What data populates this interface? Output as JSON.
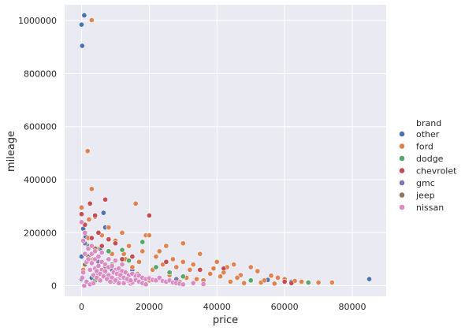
{
  "chart_data": {
    "type": "scatter",
    "xlabel": "price",
    "ylabel": "mileage",
    "xlim": [
      -5000,
      90000
    ],
    "ylim": [
      -40000,
      1060000
    ],
    "xticks": [
      0,
      20000,
      40000,
      60000,
      80000
    ],
    "xtick_labels": [
      "0",
      "20000",
      "40000",
      "60000",
      "80000"
    ],
    "yticks": [
      0,
      200000,
      400000,
      600000,
      800000,
      1000000
    ],
    "ytick_labels": [
      "0",
      "200000",
      "400000",
      "600000",
      "800000",
      "1000000"
    ],
    "grid": true,
    "legend": {
      "title": "brand",
      "placement": "right",
      "entries": [
        "other",
        "ford",
        "dodge",
        "chevrolet",
        "gmc",
        "jeep",
        "nissan"
      ]
    },
    "series": [
      {
        "name": "other",
        "color": "#4c72b0",
        "points": [
          [
            0,
            985000
          ],
          [
            800,
            1020000
          ],
          [
            200,
            905000
          ],
          [
            85000,
            25000
          ],
          [
            6500,
            275000
          ],
          [
            500,
            215000
          ],
          [
            0,
            110000
          ],
          [
            1200,
            185000
          ],
          [
            7000,
            220000
          ],
          [
            5500,
            140000
          ],
          [
            62000,
            15000
          ],
          [
            55000,
            22000
          ],
          [
            3000,
            30000
          ],
          [
            15000,
            60000
          ],
          [
            0,
            25000
          ]
        ]
      },
      {
        "name": "ford",
        "color": "#dd8452",
        "points": [
          [
            3000,
            1002000
          ],
          [
            1800,
            508000
          ],
          [
            3000,
            365000
          ],
          [
            16000,
            310000
          ],
          [
            0,
            295000
          ],
          [
            2200,
            250000
          ],
          [
            4000,
            260000
          ],
          [
            8000,
            220000
          ],
          [
            12000,
            200000
          ],
          [
            19000,
            190000
          ],
          [
            20000,
            190000
          ],
          [
            30000,
            160000
          ],
          [
            25000,
            150000
          ],
          [
            35000,
            120000
          ],
          [
            40000,
            90000
          ],
          [
            45000,
            80000
          ],
          [
            50000,
            70000
          ],
          [
            52000,
            55000
          ],
          [
            58000,
            30000
          ],
          [
            60000,
            25000
          ],
          [
            65000,
            15000
          ],
          [
            70000,
            12000
          ],
          [
            74000,
            12000
          ],
          [
            56000,
            38000
          ],
          [
            42000,
            50000
          ],
          [
            38000,
            45000
          ],
          [
            47000,
            40000
          ],
          [
            32000,
            60000
          ],
          [
            28000,
            70000
          ],
          [
            24000,
            80000
          ],
          [
            22000,
            110000
          ],
          [
            18000,
            130000
          ],
          [
            14000,
            150000
          ],
          [
            10000,
            170000
          ],
          [
            6000,
            190000
          ],
          [
            2000,
            180000
          ],
          [
            1000,
            160000
          ],
          [
            4500,
            140000
          ],
          [
            9000,
            120000
          ],
          [
            13000,
            100000
          ],
          [
            17000,
            90000
          ],
          [
            21000,
            60000
          ],
          [
            26000,
            40000
          ],
          [
            31000,
            30000
          ],
          [
            36000,
            20000
          ],
          [
            44000,
            15000
          ],
          [
            48000,
            10000
          ],
          [
            53000,
            12000
          ],
          [
            63000,
            18000
          ],
          [
            27000,
            100000
          ],
          [
            33000,
            80000
          ],
          [
            39000,
            65000
          ],
          [
            43000,
            70000
          ],
          [
            46000,
            30000
          ],
          [
            15000,
            70000
          ],
          [
            11000,
            50000
          ],
          [
            7000,
            80000
          ],
          [
            3500,
            100000
          ],
          [
            500,
            60000
          ],
          [
            5000,
            40000
          ],
          [
            20000,
            20000
          ],
          [
            29000,
            15000
          ],
          [
            34000,
            25000
          ],
          [
            41000,
            35000
          ],
          [
            54000,
            20000
          ],
          [
            57000,
            8000
          ],
          [
            16500,
            45000
          ],
          [
            12500,
            120000
          ],
          [
            23000,
            130000
          ],
          [
            30000,
            90000
          ]
        ]
      },
      {
        "name": "dodge",
        "color": "#55a868",
        "points": [
          [
            18000,
            165000
          ],
          [
            67000,
            12000
          ],
          [
            2000,
            150000
          ],
          [
            8000,
            130000
          ],
          [
            14000,
            95000
          ],
          [
            22000,
            70000
          ],
          [
            12000,
            135000
          ],
          [
            26000,
            50000
          ],
          [
            50000,
            20000
          ],
          [
            4000,
            20000
          ],
          [
            30000,
            35000
          ],
          [
            9000,
            80000
          ]
        ]
      },
      {
        "name": "chevrolet",
        "color": "#c44e52",
        "points": [
          [
            7000,
            325000
          ],
          [
            20000,
            265000
          ],
          [
            2500,
            310000
          ],
          [
            4000,
            265000
          ],
          [
            0,
            270000
          ],
          [
            1000,
            230000
          ],
          [
            5000,
            200000
          ],
          [
            10000,
            160000
          ],
          [
            6000,
            150000
          ],
          [
            8000,
            175000
          ],
          [
            15000,
            110000
          ],
          [
            25000,
            90000
          ],
          [
            35000,
            60000
          ],
          [
            42000,
            65000
          ],
          [
            60000,
            15000
          ],
          [
            62000,
            10000
          ],
          [
            3000,
            180000
          ],
          [
            12000,
            100000
          ]
        ]
      },
      {
        "name": "gmc",
        "color": "#8172b3",
        "points": [
          [
            1000,
            160000
          ],
          [
            5000,
            90000
          ],
          [
            9000,
            60000
          ],
          [
            16000,
            40000
          ],
          [
            28000,
            25000
          ],
          [
            3000,
            120000
          ]
        ]
      },
      {
        "name": "jeep",
        "color": "#937860",
        "points": [
          [
            2000,
            110000
          ],
          [
            7000,
            70000
          ],
          [
            12000,
            45000
          ],
          [
            4000,
            140000
          ],
          [
            20000,
            30000
          ],
          [
            1000,
            80000
          ]
        ]
      },
      {
        "name": "nissan",
        "color": "#da8bc3",
        "points": [
          [
            0,
            240000
          ],
          [
            1000,
            200000
          ],
          [
            500,
            170000
          ],
          [
            2000,
            140000
          ],
          [
            3000,
            120000
          ],
          [
            4000,
            100000
          ],
          [
            5000,
            110000
          ],
          [
            6000,
            90000
          ],
          [
            7000,
            80000
          ],
          [
            8000,
            70000
          ],
          [
            9000,
            75000
          ],
          [
            10000,
            60000
          ],
          [
            11000,
            65000
          ],
          [
            12000,
            55000
          ],
          [
            13000,
            50000
          ],
          [
            14000,
            40000
          ],
          [
            15000,
            45000
          ],
          [
            16000,
            35000
          ],
          [
            17000,
            38000
          ],
          [
            18000,
            30000
          ],
          [
            19000,
            25000
          ],
          [
            20000,
            28000
          ],
          [
            21000,
            22000
          ],
          [
            22000,
            20000
          ],
          [
            23000,
            30000
          ],
          [
            24000,
            18000
          ],
          [
            25000,
            15000
          ],
          [
            26000,
            20000
          ],
          [
            27000,
            12000
          ],
          [
            28000,
            10000
          ],
          [
            1500,
            90000
          ],
          [
            2500,
            60000
          ],
          [
            3500,
            40000
          ],
          [
            4500,
            30000
          ],
          [
            5500,
            20000
          ],
          [
            6500,
            50000
          ],
          [
            7500,
            45000
          ],
          [
            8500,
            35000
          ],
          [
            9500,
            15000
          ],
          [
            10500,
            25000
          ],
          [
            11500,
            30000
          ],
          [
            12500,
            10000
          ],
          [
            13500,
            20000
          ],
          [
            14500,
            8000
          ],
          [
            500,
            50000
          ],
          [
            1000,
            120000
          ],
          [
            2000,
            100000
          ],
          [
            3000,
            85000
          ],
          [
            4000,
            65000
          ],
          [
            5000,
            75000
          ],
          [
            6000,
            60000
          ],
          [
            7000,
            55000
          ],
          [
            8000,
            40000
          ],
          [
            9000,
            30000
          ],
          [
            10000,
            20000
          ],
          [
            11000,
            10000
          ],
          [
            12000,
            35000
          ],
          [
            13000,
            28000
          ],
          [
            14000,
            18000
          ],
          [
            15000,
            12000
          ],
          [
            16000,
            22000
          ],
          [
            17000,
            15000
          ],
          [
            18000,
            10000
          ],
          [
            19000,
            5000
          ],
          [
            200,
            30000
          ],
          [
            800,
            0
          ],
          [
            1500,
            15000
          ],
          [
            2500,
            5000
          ],
          [
            3500,
            10000
          ],
          [
            4500,
            55000
          ],
          [
            5500,
            45000
          ],
          [
            6500,
            35000
          ],
          [
            7500,
            25000
          ],
          [
            8500,
            15000
          ],
          [
            9500,
            50000
          ],
          [
            10500,
            45000
          ],
          [
            11500,
            40000
          ],
          [
            12500,
            30000
          ],
          [
            13500,
            25000
          ],
          [
            14500,
            20000
          ],
          [
            3000,
            150000
          ],
          [
            4000,
            130000
          ],
          [
            6000,
            125000
          ],
          [
            8000,
            100000
          ],
          [
            10000,
            95000
          ],
          [
            12000,
            80000
          ],
          [
            29000,
            8000
          ],
          [
            30000,
            5000
          ],
          [
            33000,
            10000
          ],
          [
            36000,
            6000
          ]
        ]
      }
    ]
  }
}
